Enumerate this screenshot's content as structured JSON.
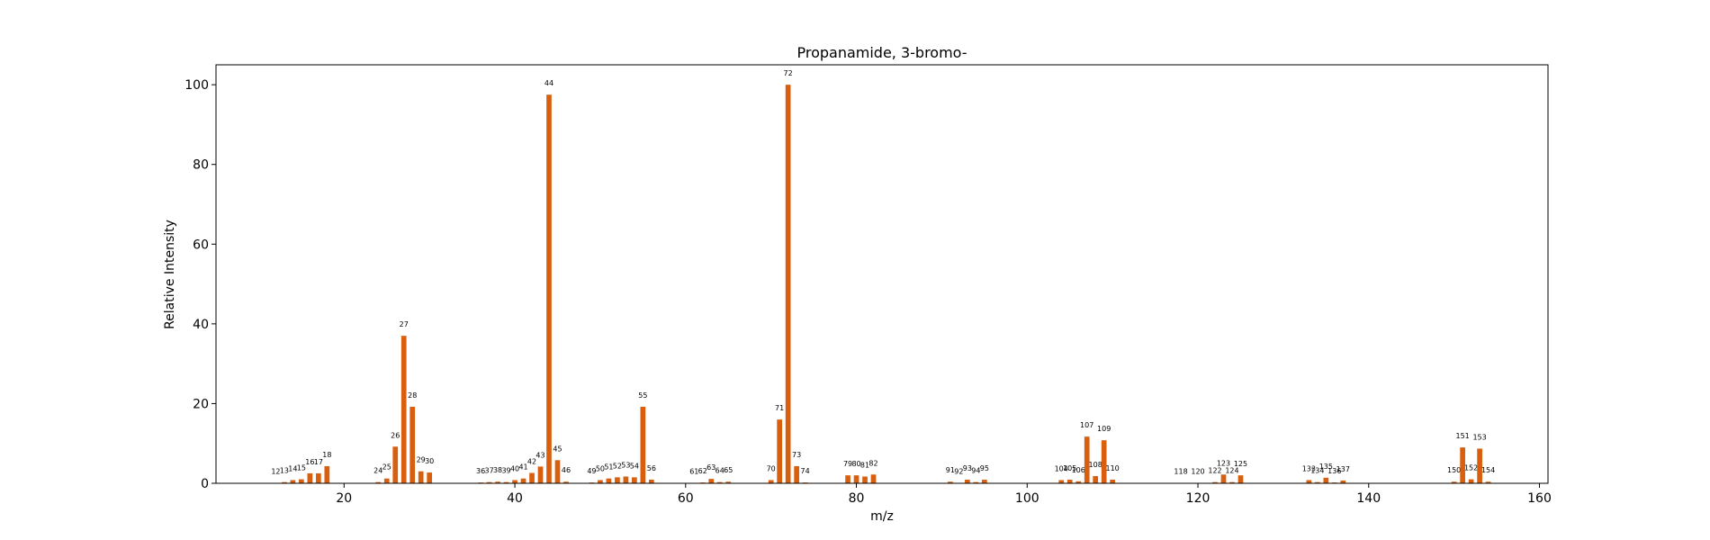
{
  "chart_data": {
    "type": "bar",
    "title": "Propanamide, 3-bromo-",
    "xlabel": "m/z",
    "ylabel": "Relative Intensity",
    "xlim": [
      5,
      161
    ],
    "ylim": [
      0,
      105
    ],
    "xticks": [
      20,
      40,
      60,
      80,
      100,
      120,
      140,
      160
    ],
    "yticks": [
      0,
      20,
      40,
      60,
      80,
      100
    ],
    "grid": false,
    "bar_color": "#d95f0e",
    "series": [
      {
        "x": [
          12,
          13,
          14,
          15,
          16,
          17,
          18,
          24,
          25,
          26,
          27,
          28,
          29,
          30,
          36,
          37,
          38,
          39,
          40,
          41,
          42,
          43,
          44,
          45,
          46,
          49,
          50,
          51,
          52,
          53,
          54,
          55,
          56,
          61,
          62,
          63,
          64,
          65,
          70,
          71,
          72,
          73,
          74,
          79,
          80,
          81,
          82,
          91,
          92,
          93,
          94,
          95,
          104,
          105,
          106,
          107,
          108,
          109,
          110,
          118,
          120,
          122,
          123,
          124,
          125,
          133,
          134,
          135,
          136,
          137,
          150,
          151,
          152,
          153,
          154
        ],
        "values": [
          0.1,
          0.3,
          0.8,
          1.0,
          2.5,
          2.5,
          4.3,
          0.3,
          1.2,
          9.2,
          37.0,
          19.2,
          3.0,
          2.7,
          0.2,
          0.3,
          0.4,
          0.3,
          0.8,
          1.2,
          2.6,
          4.2,
          97.5,
          5.8,
          0.4,
          0.2,
          0.8,
          1.2,
          1.5,
          1.7,
          1.5,
          19.2,
          0.9,
          0.1,
          0.2,
          1.1,
          0.3,
          0.4,
          0.8,
          16.0,
          100.0,
          4.3,
          0.2,
          2.0,
          2.0,
          1.7,
          2.2,
          0.4,
          0.1,
          0.9,
          0.3,
          0.9,
          0.8,
          0.9,
          0.5,
          11.7,
          1.8,
          10.8,
          0.9,
          0.1,
          0.1,
          0.3,
          2.2,
          0.3,
          2.0,
          0.8,
          0.3,
          1.4,
          0.2,
          0.7,
          0.4,
          9.0,
          1.0,
          8.7,
          0.4
        ]
      }
    ],
    "data_labels": [
      "12",
      "13",
      "14",
      "15",
      "16",
      "17",
      "18",
      "24",
      "25",
      "26",
      "27",
      "28",
      "29",
      "30",
      "36",
      "37",
      "38",
      "39",
      "40",
      "41",
      "42",
      "43",
      "44",
      "45",
      "46",
      "49",
      "50",
      "51",
      "52",
      "53",
      "54",
      "55",
      "56",
      "61",
      "62",
      "63",
      "64",
      "65",
      "70",
      "71",
      "72",
      "73",
      "74",
      "79",
      "80",
      "81",
      "82",
      "91",
      "92",
      "93",
      "94",
      "95",
      "104",
      "105",
      "106",
      "107",
      "108",
      "109",
      "110",
      "118",
      "120",
      "122",
      "123",
      "124",
      "125",
      "133",
      "134",
      "135",
      "136",
      "137",
      "150",
      "151",
      "152",
      "153",
      "154"
    ]
  }
}
